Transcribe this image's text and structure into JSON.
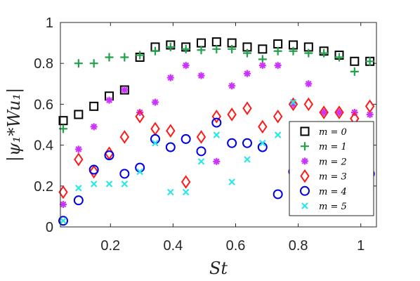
{
  "chart_data": {
    "type": "scatter",
    "xlabel": "St",
    "ylabel": "|ψ₁*Wu₁|",
    "xlim": [
      0.04,
      1.05
    ],
    "ylim": [
      0,
      1
    ],
    "xticks": [
      "0.2",
      "0.4",
      "0.6",
      "0.8",
      "1"
    ],
    "xtick_values": [
      0.2,
      0.4,
      0.6,
      0.8,
      1.0
    ],
    "yticks": [
      "0",
      "0.2",
      "0.4",
      "0.6",
      "0.8",
      "1"
    ],
    "ytick_values": [
      0,
      0.2,
      0.4,
      0.6,
      0.8,
      1.0
    ],
    "grid": false,
    "legend_position": "bottom-right",
    "x": [
      0.049,
      0.098,
      0.147,
      0.196,
      0.245,
      0.294,
      0.343,
      0.392,
      0.441,
      0.49,
      0.539,
      0.588,
      0.637,
      0.686,
      0.735,
      0.784,
      0.833,
      0.882,
      0.931,
      0.98,
      1.029
    ],
    "series": [
      {
        "name": "m = 0",
        "marker": "square",
        "color": "#000000",
        "values": [
          0.52,
          0.55,
          0.59,
          0.64,
          0.67,
          0.83,
          0.88,
          0.89,
          0.88,
          0.9,
          0.905,
          0.9,
          0.88,
          0.87,
          0.895,
          0.89,
          0.88,
          0.86,
          0.84,
          0.81,
          0.81
        ]
      },
      {
        "name": "m = 1",
        "marker": "plus",
        "color": "#22a04a",
        "values": [
          0.48,
          0.8,
          0.8,
          0.83,
          0.83,
          0.84,
          0.86,
          0.88,
          0.87,
          0.865,
          0.87,
          0.87,
          0.85,
          0.82,
          0.86,
          0.86,
          0.85,
          0.85,
          0.83,
          0.76,
          0.81
        ]
      },
      {
        "name": "m = 2",
        "marker": "asterisk",
        "color": "#cc33ff",
        "values": [
          0.11,
          0.38,
          0.49,
          0.62,
          0.67,
          0.56,
          0.61,
          0.73,
          0.79,
          0.74,
          0.32,
          0.69,
          0.75,
          0.79,
          0.79,
          0.6,
          0.7,
          0.56,
          0.56,
          0.56,
          0.55
        ]
      },
      {
        "name": "m = 3",
        "marker": "diamond",
        "color": "#ff1a1a",
        "values": [
          0.17,
          0.33,
          0.27,
          0.36,
          0.44,
          0.54,
          0.48,
          0.47,
          0.22,
          0.44,
          0.54,
          0.55,
          0.58,
          0.49,
          0.54,
          0.6,
          0.6,
          0.56,
          0.56,
          0.53,
          0.59
        ]
      },
      {
        "name": "m = 4",
        "marker": "circle",
        "color": "#0000e6",
        "values": [
          0.03,
          0.13,
          0.28,
          0.35,
          0.26,
          0.29,
          0.43,
          0.39,
          0.43,
          0.37,
          0.51,
          0.41,
          0.41,
          0.39,
          0.16,
          0.27,
          0.19,
          0.24,
          0.22,
          0.22,
          0.26
        ]
      },
      {
        "name": "m = 5",
        "marker": "x",
        "color": "#2ee6e6",
        "values": [
          0.03,
          0.19,
          0.21,
          0.21,
          0.21,
          0.27,
          0.41,
          0.17,
          0.17,
          0.32,
          0.45,
          0.22,
          0.33,
          0.41,
          0.45,
          0.61,
          0.2,
          0.35,
          0.28,
          0.27,
          0.33
        ]
      }
    ]
  }
}
